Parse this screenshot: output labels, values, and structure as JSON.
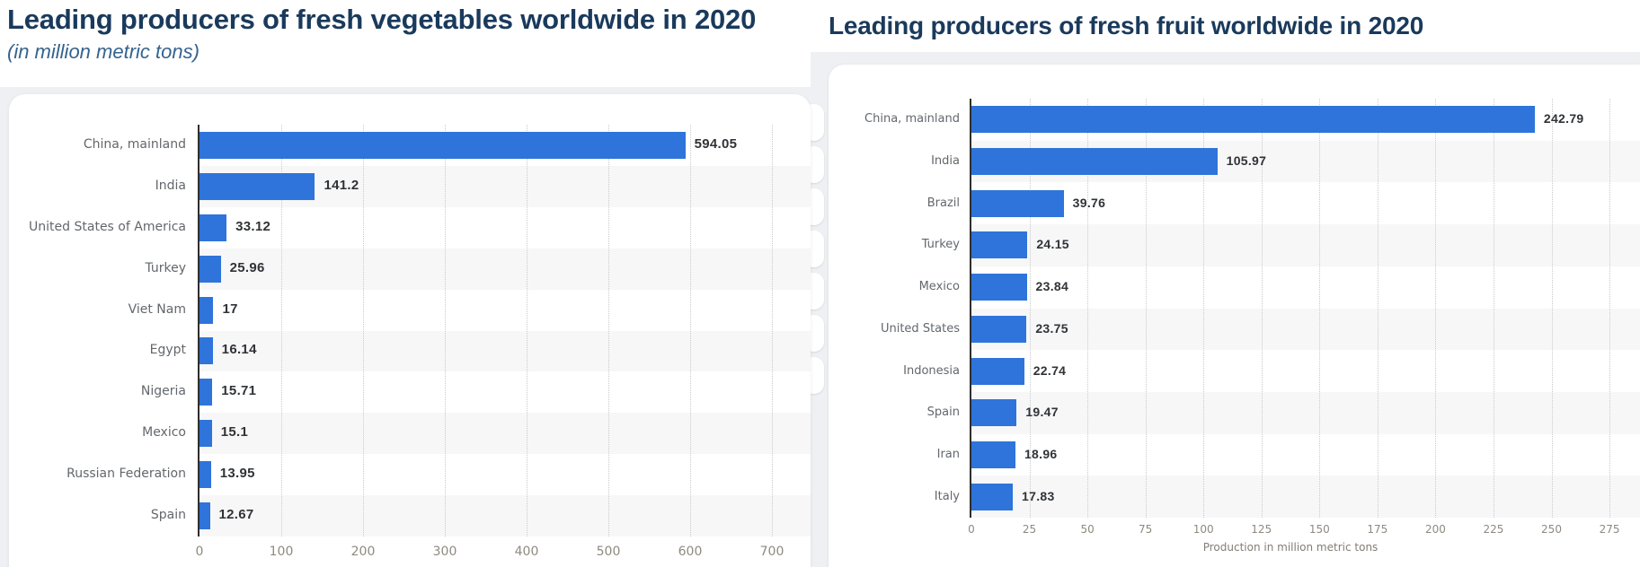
{
  "page": {
    "background": "#FFFFFF",
    "panel_background": "#EEF0F3",
    "card_background": "#FFFFFF"
  },
  "colors": {
    "bar": "#2E74DA",
    "title": "#1A3A5C",
    "subtitle": "#35638E",
    "category_label": "#63676C",
    "value_label": "#303336",
    "tick_label": "#8E8A80",
    "axis_line": "#2E2E2E",
    "gridline": "#C9CACC",
    "row_stripe": "#F7F7F8",
    "axis_title": "#837E74"
  },
  "chart_data": [
    {
      "type": "bar",
      "orientation": "horizontal",
      "title": "Leading producers of fresh vegetables worldwide in 2020",
      "subtitle": "(in million metric tons)",
      "unit": "million metric tons",
      "categories": [
        "China, mainland",
        "India",
        "United States of America",
        "Turkey",
        "Viet Nam",
        "Egypt",
        "Nigeria",
        "Mexico",
        "Russian Federation",
        "Spain"
      ],
      "values": [
        594.05,
        141.2,
        33.12,
        25.96,
        17,
        16.14,
        15.71,
        15.1,
        13.95,
        12.67
      ],
      "value_labels": [
        "594.05",
        "141.2",
        "33.12",
        "25.96",
        "17",
        "16.14",
        "15.71",
        "15.1",
        "13.95",
        "12.67"
      ],
      "xlim": [
        0,
        700
      ],
      "xticks": [
        0,
        100,
        200,
        300,
        400,
        500,
        600,
        700
      ],
      "xtick_labels": [
        "0",
        "100",
        "200",
        "300",
        "400",
        "500",
        "600",
        "700"
      ],
      "xlabel": "",
      "grid": true,
      "legend": false,
      "bar_color": "#2E74DA"
    },
    {
      "type": "bar",
      "orientation": "horizontal",
      "title": "Leading producers of fresh fruit worldwide in 2020",
      "subtitle": "",
      "unit": "million metric tons",
      "categories": [
        "China, mainland",
        "India",
        "Brazil",
        "Turkey",
        "Mexico",
        "United States",
        "Indonesia",
        "Spain",
        "Iran",
        "Italy"
      ],
      "values": [
        242.79,
        105.97,
        39.76,
        24.15,
        23.84,
        23.75,
        22.74,
        19.47,
        18.96,
        17.83
      ],
      "value_labels": [
        "242.79",
        "105.97",
        "39.76",
        "24.15",
        "23.84",
        "23.75",
        "22.74",
        "19.47",
        "18.96",
        "17.83"
      ],
      "xlim": [
        0,
        275
      ],
      "xticks": [
        0,
        25,
        50,
        75,
        100,
        125,
        150,
        175,
        200,
        225,
        250,
        275
      ],
      "xtick_labels": [
        "0",
        "25",
        "50",
        "75",
        "100",
        "125",
        "150",
        "175",
        "200",
        "225",
        "250",
        "275"
      ],
      "xlabel": "Production in million metric tons",
      "grid": true,
      "legend": false,
      "bar_color": "#2E74DA"
    }
  ]
}
